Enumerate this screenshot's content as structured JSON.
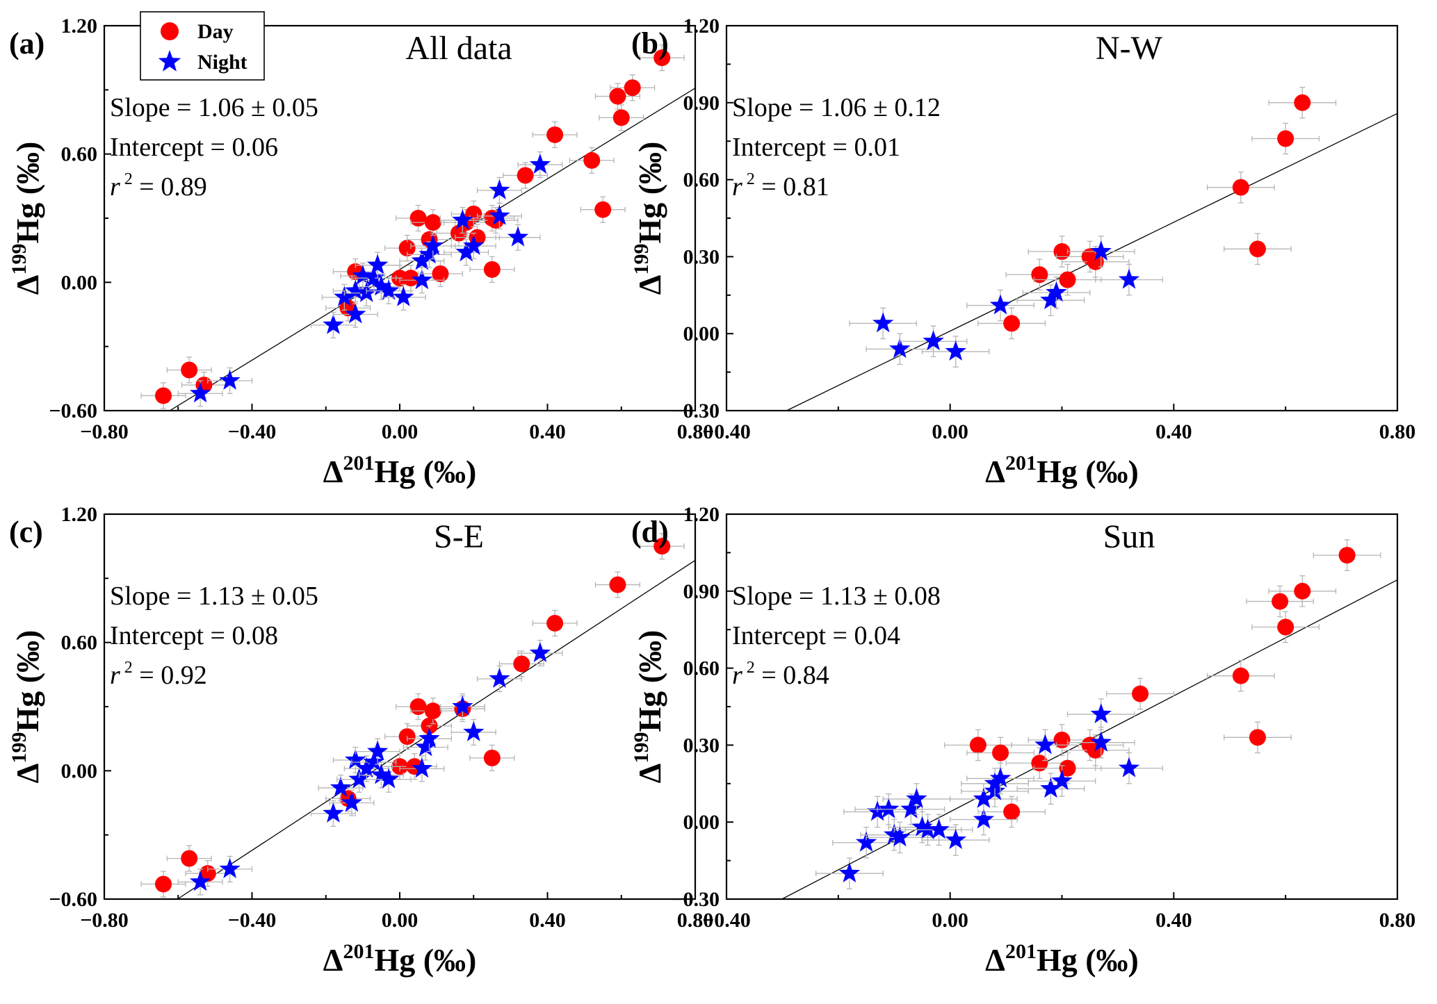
{
  "legend": {
    "day_label": "Day",
    "night_label": "Night",
    "day_color": "#ff0000",
    "night_color": "#0000ff",
    "day_marker": "circle",
    "night_marker": "star",
    "placement": "top-left of panel (a)"
  },
  "chart_data": [
    {
      "type": "scatter",
      "panel_label": "(a)",
      "title": "All data",
      "xlabel": "Δ²⁰¹Hg (‰)",
      "ylabel": "Δ¹⁹⁹Hg (‰)",
      "xlim": [
        -0.8,
        0.8
      ],
      "ylim": [
        -0.6,
        1.2
      ],
      "xticks": [
        "-0.80",
        "-0.40",
        "0.00",
        "0.40",
        "0.80"
      ],
      "yticks": [
        "-0.60",
        "0.00",
        "0.60",
        "1.20"
      ],
      "stats": [
        "Slope = 1.06 ± 0.05",
        "Intercept = 0.06",
        "r² = 0.89"
      ],
      "fit": {
        "slope": 1.06,
        "intercept": 0.06
      },
      "grid": false,
      "series": [
        {
          "name": "Day",
          "marker": "circle",
          "color": "#ff0000",
          "points": [
            [
              -0.64,
              -0.53
            ],
            [
              -0.57,
              -0.41
            ],
            [
              -0.53,
              -0.48
            ],
            [
              -0.14,
              -0.12
            ],
            [
              -0.12,
              0.05
            ],
            [
              0.0,
              0.02
            ],
            [
              0.03,
              0.02
            ],
            [
              0.02,
              0.16
            ],
            [
              0.05,
              0.3
            ],
            [
              0.08,
              0.2
            ],
            [
              0.09,
              0.28
            ],
            [
              0.11,
              0.04
            ],
            [
              0.16,
              0.23
            ],
            [
              0.18,
              0.28
            ],
            [
              0.2,
              0.32
            ],
            [
              0.21,
              0.21
            ],
            [
              0.25,
              0.3
            ],
            [
              0.26,
              0.29
            ],
            [
              0.25,
              0.06
            ],
            [
              0.34,
              0.5
            ],
            [
              0.42,
              0.69
            ],
            [
              0.52,
              0.57
            ],
            [
              0.55,
              0.34
            ],
            [
              0.59,
              0.87
            ],
            [
              0.6,
              0.77
            ],
            [
              0.63,
              0.91
            ],
            [
              0.71,
              1.05
            ]
          ],
          "xerr": 0.06,
          "yerr": 0.06
        },
        {
          "name": "Night",
          "marker": "star",
          "color": "#0000ff",
          "points": [
            [
              -0.54,
              -0.52
            ],
            [
              -0.46,
              -0.46
            ],
            [
              -0.18,
              -0.2
            ],
            [
              -0.15,
              -0.07
            ],
            [
              -0.12,
              -0.15
            ],
            [
              -0.12,
              -0.04
            ],
            [
              -0.1,
              0.03
            ],
            [
              -0.09,
              -0.05
            ],
            [
              -0.07,
              0.02
            ],
            [
              -0.06,
              0.08
            ],
            [
              -0.05,
              -0.02
            ],
            [
              -0.03,
              -0.04
            ],
            [
              0.01,
              -0.07
            ],
            [
              0.06,
              0.01
            ],
            [
              0.06,
              0.1
            ],
            [
              0.08,
              0.13
            ],
            [
              0.09,
              0.17
            ],
            [
              0.17,
              0.29
            ],
            [
              0.18,
              0.14
            ],
            [
              0.2,
              0.17
            ],
            [
              0.27,
              0.43
            ],
            [
              0.27,
              0.31
            ],
            [
              0.32,
              0.21
            ],
            [
              0.38,
              0.55
            ]
          ],
          "xerr": 0.06,
          "yerr": 0.06
        }
      ]
    },
    {
      "type": "scatter",
      "panel_label": "(b)",
      "title": "N-W",
      "xlabel": "Δ²⁰¹Hg (‰)",
      "ylabel": "Δ¹⁹⁹Hg (‰)",
      "xlim": [
        -0.4,
        0.8
      ],
      "ylim": [
        -0.3,
        1.2
      ],
      "xticks": [
        "-0.40",
        "0.00",
        "0.40",
        "0.80"
      ],
      "yticks": [
        "-0.30",
        "0.00",
        "0.30",
        "0.60",
        "0.90",
        "1.20"
      ],
      "stats": [
        "Slope = 1.06 ± 0.12",
        "Intercept = 0.01",
        "r² = 0.81"
      ],
      "fit": {
        "slope": 1.06,
        "intercept": 0.01
      },
      "grid": false,
      "series": [
        {
          "name": "Day",
          "marker": "circle",
          "color": "#ff0000",
          "points": [
            [
              0.11,
              0.04
            ],
            [
              0.16,
              0.23
            ],
            [
              0.2,
              0.32
            ],
            [
              0.21,
              0.21
            ],
            [
              0.25,
              0.3
            ],
            [
              0.26,
              0.28
            ],
            [
              0.52,
              0.57
            ],
            [
              0.55,
              0.33
            ],
            [
              0.6,
              0.76
            ],
            [
              0.63,
              0.9
            ]
          ],
          "xerr": 0.06,
          "yerr": 0.06
        },
        {
          "name": "Night",
          "marker": "star",
          "color": "#0000ff",
          "points": [
            [
              -0.12,
              0.04
            ],
            [
              -0.09,
              -0.06
            ],
            [
              -0.03,
              -0.03
            ],
            [
              0.01,
              -0.07
            ],
            [
              0.09,
              0.11
            ],
            [
              0.18,
              0.13
            ],
            [
              0.19,
              0.16
            ],
            [
              0.27,
              0.32
            ],
            [
              0.32,
              0.21
            ]
          ],
          "xerr": 0.06,
          "yerr": 0.06
        }
      ]
    },
    {
      "type": "scatter",
      "panel_label": "(c)",
      "title": "S-E",
      "xlabel": "Δ²⁰¹Hg (‰)",
      "ylabel": "Δ¹⁹⁹Hg (‰)",
      "xlim": [
        -0.8,
        0.8
      ],
      "ylim": [
        -0.6,
        1.2
      ],
      "xticks": [
        "-0.80",
        "-0.40",
        "0.00",
        "0.40",
        "0.80"
      ],
      "yticks": [
        "-0.60",
        "0.00",
        "0.60",
        "1.20"
      ],
      "stats": [
        "Slope = 1.13 ± 0.05",
        "Intercept = 0.08",
        "r² = 0.92"
      ],
      "fit": {
        "slope": 1.13,
        "intercept": 0.08
      },
      "grid": false,
      "series": [
        {
          "name": "Day",
          "marker": "circle",
          "color": "#ff0000",
          "points": [
            [
              -0.64,
              -0.53
            ],
            [
              -0.57,
              -0.41
            ],
            [
              -0.52,
              -0.48
            ],
            [
              -0.14,
              -0.13
            ],
            [
              0.0,
              0.02
            ],
            [
              0.02,
              0.16
            ],
            [
              0.04,
              0.02
            ],
            [
              0.05,
              0.3
            ],
            [
              0.08,
              0.21
            ],
            [
              0.09,
              0.28
            ],
            [
              0.17,
              0.29
            ],
            [
              0.25,
              0.06
            ],
            [
              0.33,
              0.5
            ],
            [
              0.42,
              0.69
            ],
            [
              0.59,
              0.87
            ],
            [
              0.71,
              1.05
            ]
          ],
          "xerr": 0.06,
          "yerr": 0.06
        },
        {
          "name": "Night",
          "marker": "star",
          "color": "#0000ff",
          "points": [
            [
              -0.54,
              -0.52
            ],
            [
              -0.46,
              -0.46
            ],
            [
              -0.18,
              -0.2
            ],
            [
              -0.16,
              -0.08
            ],
            [
              -0.13,
              -0.15
            ],
            [
              -0.12,
              0.05
            ],
            [
              -0.11,
              -0.04
            ],
            [
              -0.09,
              0.01
            ],
            [
              -0.07,
              0.04
            ],
            [
              -0.06,
              0.09
            ],
            [
              -0.05,
              -0.02
            ],
            [
              -0.03,
              -0.04
            ],
            [
              0.06,
              0.01
            ],
            [
              0.07,
              0.11
            ],
            [
              0.08,
              0.15
            ],
            [
              0.17,
              0.3
            ],
            [
              0.2,
              0.18
            ],
            [
              0.27,
              0.43
            ],
            [
              0.38,
              0.55
            ]
          ],
          "xerr": 0.06,
          "yerr": 0.06
        }
      ]
    },
    {
      "type": "scatter",
      "panel_label": "(d)",
      "title": "Sun",
      "xlabel": "Δ²⁰¹Hg (‰)",
      "ylabel": "Δ¹⁹⁹Hg (‰)",
      "xlim": [
        -0.4,
        0.8
      ],
      "ylim": [
        -0.3,
        1.2
      ],
      "xticks": [
        "-0.40",
        "0.00",
        "0.40",
        "0.80"
      ],
      "yticks": [
        "-0.30",
        "0.00",
        "0.30",
        "0.60",
        "0.90",
        "1.20"
      ],
      "stats": [
        "Slope = 1.13 ± 0.08",
        "Intercept = 0.04",
        "r² = 0.84"
      ],
      "fit": {
        "slope": 1.13,
        "intercept": 0.04
      },
      "grid": false,
      "series": [
        {
          "name": "Day",
          "marker": "circle",
          "color": "#ff0000",
          "points": [
            [
              0.05,
              0.3
            ],
            [
              0.09,
              0.27
            ],
            [
              0.11,
              0.04
            ],
            [
              0.16,
              0.23
            ],
            [
              0.2,
              0.32
            ],
            [
              0.21,
              0.21
            ],
            [
              0.25,
              0.3
            ],
            [
              0.26,
              0.28
            ],
            [
              0.34,
              0.5
            ],
            [
              0.52,
              0.57
            ],
            [
              0.55,
              0.33
            ],
            [
              0.59,
              0.86
            ],
            [
              0.6,
              0.76
            ],
            [
              0.63,
              0.9
            ],
            [
              0.71,
              1.04
            ]
          ],
          "xerr": 0.06,
          "yerr": 0.06
        },
        {
          "name": "Night",
          "marker": "star",
          "color": "#0000ff",
          "points": [
            [
              -0.18,
              -0.2
            ],
            [
              -0.15,
              -0.08
            ],
            [
              -0.13,
              0.04
            ],
            [
              -0.11,
              0.05
            ],
            [
              -0.1,
              -0.05
            ],
            [
              -0.09,
              -0.06
            ],
            [
              -0.07,
              0.05
            ],
            [
              -0.06,
              0.09
            ],
            [
              -0.05,
              -0.02
            ],
            [
              -0.04,
              -0.03
            ],
            [
              -0.02,
              -0.03
            ],
            [
              0.01,
              -0.07
            ],
            [
              0.06,
              0.01
            ],
            [
              0.06,
              0.09
            ],
            [
              0.08,
              0.12
            ],
            [
              0.08,
              0.15
            ],
            [
              0.09,
              0.17
            ],
            [
              0.17,
              0.3
            ],
            [
              0.18,
              0.13
            ],
            [
              0.2,
              0.16
            ],
            [
              0.27,
              0.42
            ],
            [
              0.27,
              0.31
            ],
            [
              0.32,
              0.21
            ]
          ],
          "xerr": 0.06,
          "yerr": 0.06
        }
      ]
    }
  ]
}
